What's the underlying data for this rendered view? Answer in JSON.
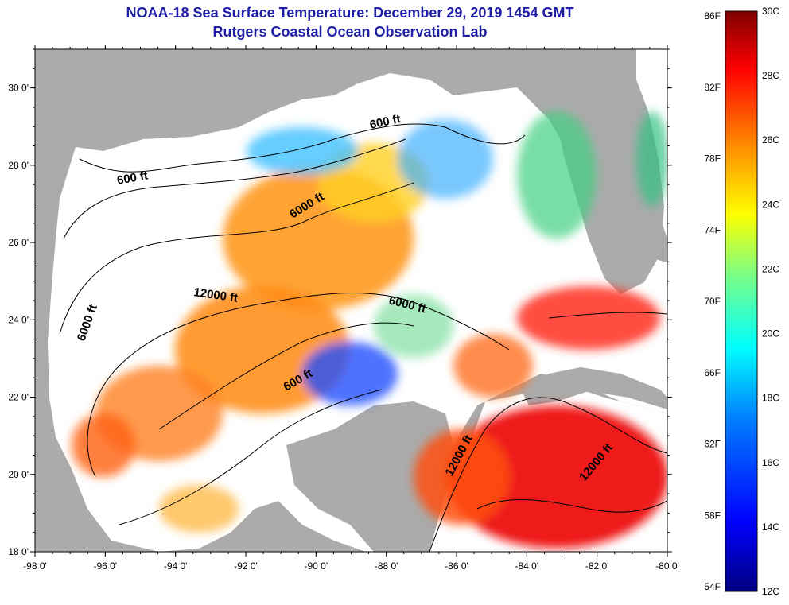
{
  "header": {
    "title": "NOAA-18 Sea Surface Temperature:  December 29, 2019 1454 GMT",
    "subtitle": "Rutgers Coastal Ocean Observation Lab"
  },
  "map": {
    "lon_range": [
      -98,
      -80
    ],
    "lat_range": [
      18,
      31
    ],
    "lon_ticks": [
      "-98 0'",
      "-96 0'",
      "-94 0'",
      "-92 0'",
      "-90 0'",
      "-88 0'",
      "-86 0'",
      "-84 0'",
      "-82 0'",
      "-80 0'"
    ],
    "lat_ticks": [
      "18 0'",
      "20 0'",
      "22 0'",
      "24 0'",
      "26 0'",
      "28 0'",
      "30 0'"
    ],
    "contour_labels": [
      "600 ft",
      "600 ft",
      "6000 ft",
      "12000 ft",
      "6000 ft",
      "6000 ft",
      "600 ft",
      "12000 ft",
      "12000 ft"
    ],
    "colors": {
      "land": "#ababab",
      "cloud": "#ffffff",
      "contour": "#000000"
    }
  },
  "colorbar": {
    "fahrenheit_labels": [
      "86F",
      "82F",
      "78F",
      "74F",
      "70F",
      "66F",
      "62F",
      "58F",
      "54F"
    ],
    "celsius_labels": [
      "30C",
      "28C",
      "26C",
      "24C",
      "22C",
      "20C",
      "18C",
      "16C",
      "14C",
      "12C"
    ],
    "stops": [
      "#00007f",
      "#0000ff",
      "#0080ff",
      "#00ffff",
      "#80ff80",
      "#ffff00",
      "#ff8000",
      "#ff0000",
      "#7f0000"
    ]
  }
}
